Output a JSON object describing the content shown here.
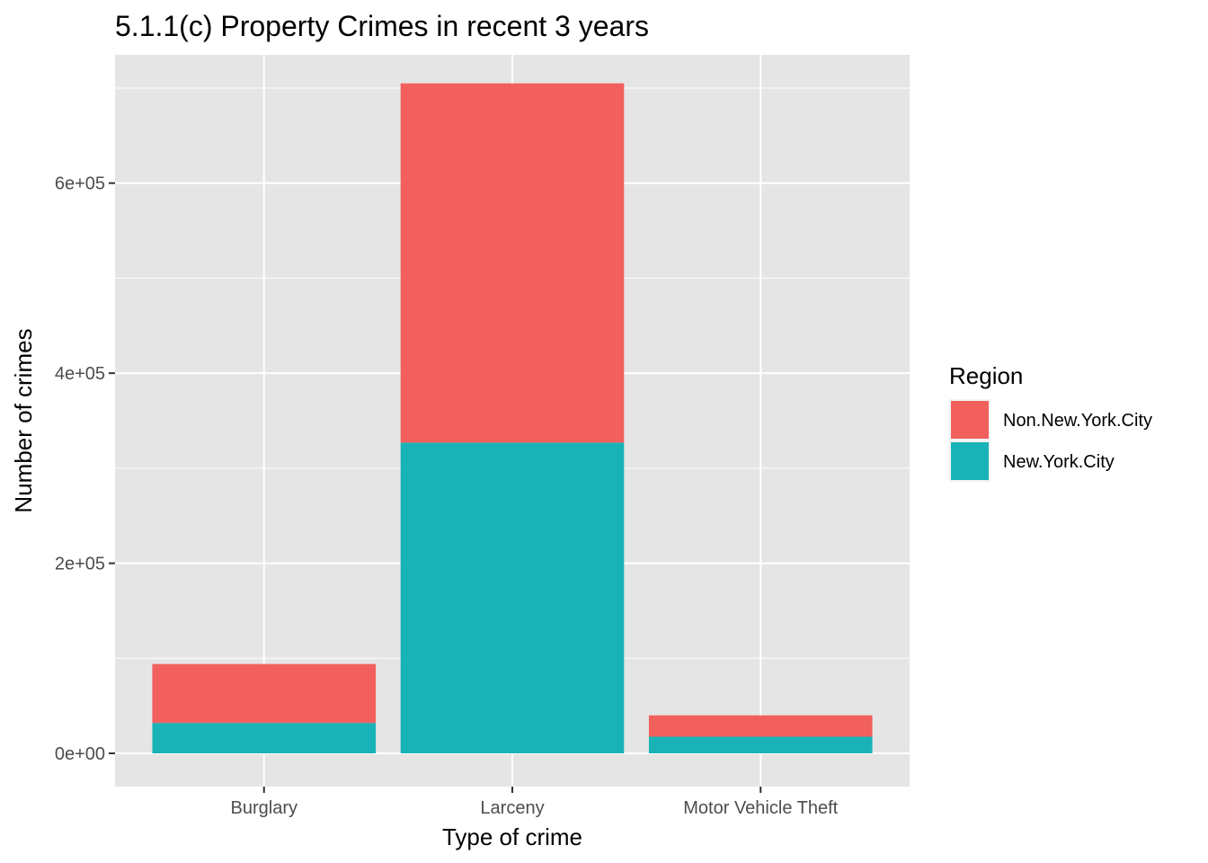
{
  "chart_data": {
    "type": "bar",
    "stacked": true,
    "title": "5.1.1(c) Property Crimes in recent 3 years",
    "xlabel": "Type of crime",
    "ylabel": "Number of crimes",
    "categories": [
      "Burglary",
      "Larceny",
      "Motor Vehicle Theft"
    ],
    "series": [
      {
        "name": "New.York.City",
        "color": "#19B3B7",
        "values": [
          32000,
          327000,
          17500
        ]
      },
      {
        "name": "Non.New.York.City",
        "color": "#F1605D",
        "values": [
          62000,
          378000,
          22500
        ]
      }
    ],
    "ylim": [
      -35000,
      735000
    ],
    "yticks": [
      {
        "value": 0,
        "label": "0e+00"
      },
      {
        "value": 200000,
        "label": "2e+05"
      },
      {
        "value": 400000,
        "label": "4e+05"
      },
      {
        "value": 600000,
        "label": "6e+05"
      }
    ],
    "legend": {
      "title": "Region",
      "position": "right",
      "entries": [
        {
          "name": "Non.New.York.City",
          "color": "#F1605D"
        },
        {
          "name": "New.York.City",
          "color": "#19B3B7"
        }
      ]
    },
    "panel_background": "#E5E5E5",
    "grid": true
  }
}
